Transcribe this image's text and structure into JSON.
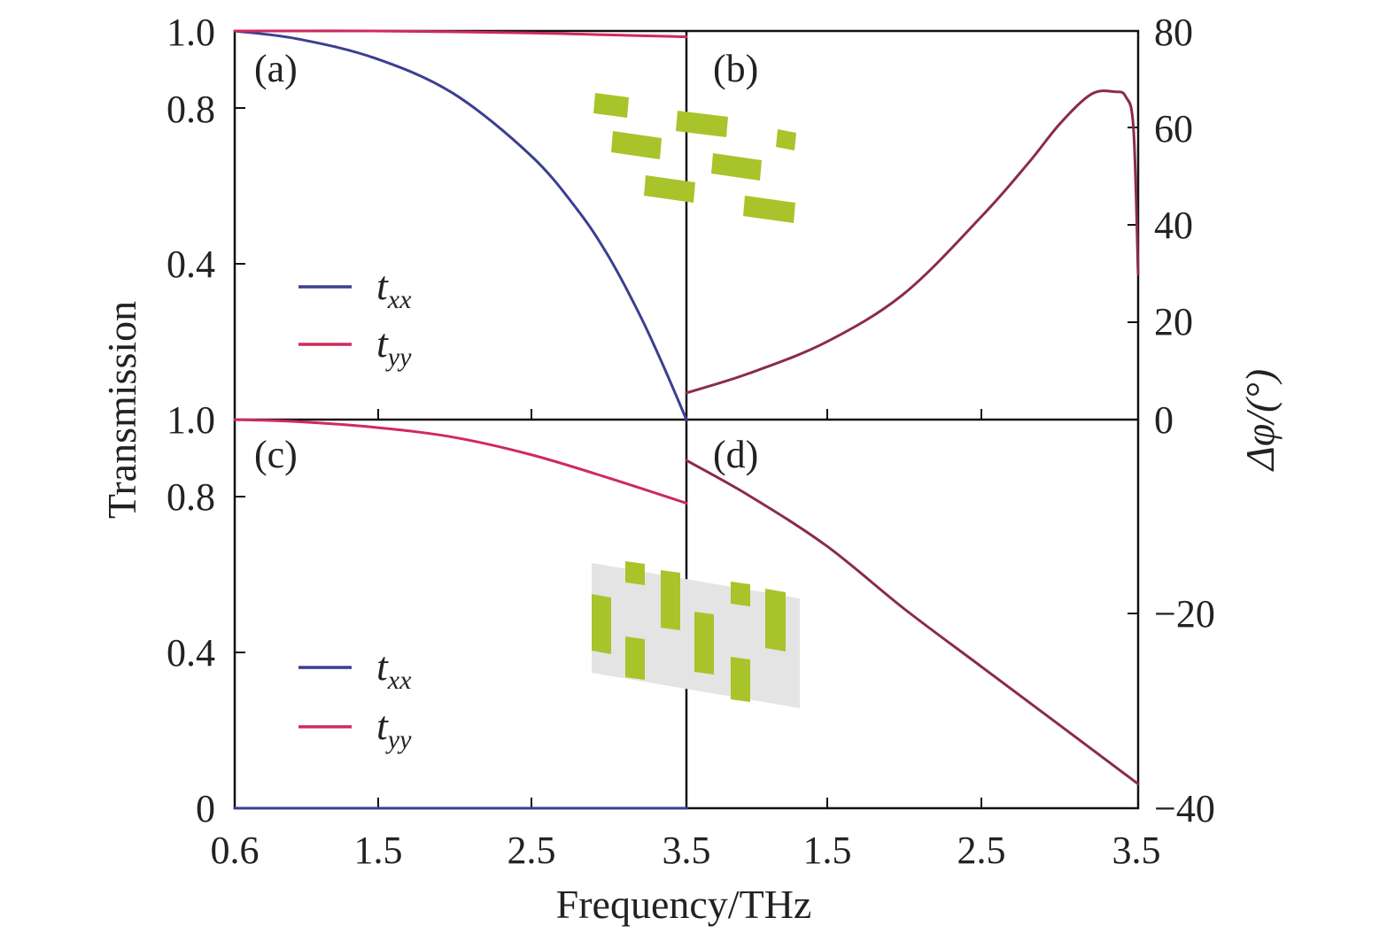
{
  "colors": {
    "txx": "#3b3f8f",
    "tyy": "#d02a5a",
    "delta": "#8b2c45",
    "cell": "#a8c42a",
    "substrate": "#e4e4e4",
    "axis": "#111111"
  },
  "axes": {
    "x_left_ticks": [
      "0.6",
      "1.5",
      "2.5",
      "3.5"
    ],
    "x_right_ticks": [
      "3.5",
      "1.5",
      "2.5",
      "3.5"
    ],
    "x_label": "Frequency/THz",
    "y_left_top_ticks": [
      "1.0",
      "0.8",
      "0.4"
    ],
    "y_left_bottom_ticks": [
      "1.0",
      "0.8",
      "0.4",
      "0"
    ],
    "y_left_label": "Transmission",
    "y_right_ticks": [
      "80",
      "60",
      "40",
      "20",
      "0",
      "−20",
      "−40"
    ],
    "y_right_label": "Δφ/(°)"
  },
  "legend": {
    "top": [
      {
        "main": "t",
        "sub": "xx"
      },
      {
        "main": "t",
        "sub": "yy"
      }
    ],
    "bottom": [
      {
        "main": "t",
        "sub": "xx"
      },
      {
        "main": "t",
        "sub": "yy"
      }
    ]
  },
  "chart_data": [
    {
      "panel": "(a)",
      "type": "line",
      "xlim": [
        0.6,
        3.5
      ],
      "ylim": [
        0,
        1.0
      ],
      "ylabel": "Transmission",
      "series": [
        {
          "name": "t_xx",
          "x": [
            0.6,
            1.0,
            1.5,
            2.0,
            2.5,
            2.8,
            3.0,
            3.2,
            3.35,
            3.5
          ],
          "values": [
            1.0,
            0.98,
            0.93,
            0.84,
            0.68,
            0.54,
            0.42,
            0.27,
            0.14,
            0.0
          ]
        },
        {
          "name": "t_yy",
          "x": [
            0.6,
            1.5,
            2.5,
            3.0,
            3.5
          ],
          "values": [
            1.0,
            1.0,
            0.995,
            0.99,
            0.985
          ]
        }
      ]
    },
    {
      "panel": "(b)",
      "type": "line",
      "xlim": [
        0.6,
        3.5
      ],
      "ylim": [
        0,
        80
      ],
      "ylabel": "Δφ/(°)",
      "series": [
        {
          "x": [
            0.6,
            1.0,
            1.5,
            2.0,
            2.5,
            2.8,
            3.0,
            3.2,
            3.35,
            3.42,
            3.47,
            3.5
          ],
          "values": [
            5.5,
            9.5,
            16,
            26,
            42,
            53,
            61,
            67,
            67.5,
            66.5,
            60,
            30
          ]
        }
      ]
    },
    {
      "panel": "(c)",
      "type": "line",
      "xlim": [
        0.6,
        3.5
      ],
      "ylim": [
        0,
        1.0
      ],
      "ylabel": "Transmission",
      "series": [
        {
          "name": "t_xx",
          "x": [
            0.6,
            1.5,
            2.5,
            3.5
          ],
          "values": [
            0.0,
            0.0,
            0.0,
            0.0
          ]
        },
        {
          "name": "t_yy",
          "x": [
            0.6,
            1.0,
            1.5,
            2.0,
            2.5,
            3.0,
            3.5
          ],
          "values": [
            1.0,
            0.995,
            0.98,
            0.955,
            0.91,
            0.85,
            0.785
          ]
        }
      ]
    },
    {
      "panel": "(d)",
      "type": "line",
      "xlim": [
        0.6,
        3.5
      ],
      "ylim": [
        -40,
        0
      ],
      "ylabel": "Δφ/(°)",
      "series": [
        {
          "x": [
            0.6,
            1.0,
            1.5,
            2.0,
            2.5,
            3.0,
            3.5
          ],
          "values": [
            -4.2,
            -7.8,
            -13,
            -19.5,
            -25.5,
            -31.5,
            -37.5
          ]
        }
      ]
    }
  ]
}
